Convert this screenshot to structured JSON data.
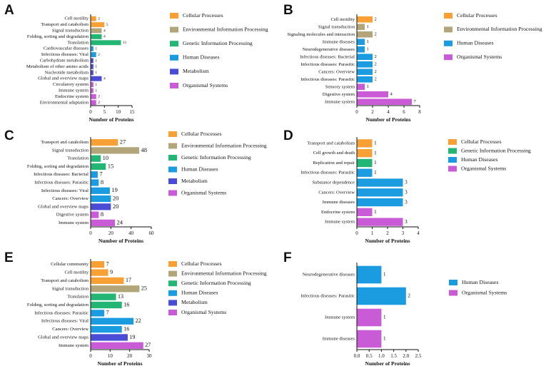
{
  "colors": {
    "Cellular Processes": "#f7a035",
    "Environmental Information Processing": "#b3a57a",
    "Genetic Information Processing": "#22b573",
    "Human Diseases": "#1b9be0",
    "Metabolism": "#4a4cd6",
    "Organismal Systems": "#c95bd6"
  },
  "chart_data": [
    {
      "type": "bar",
      "panel": "A",
      "orientation": "horizontal",
      "xlabel": "Number of Proteins",
      "xlim": [
        0,
        15
      ],
      "xticks": [
        0,
        5,
        10,
        15
      ],
      "legend": [
        "Cellular Processes",
        "Environmental Information Processing",
        "Genetic Information Processing",
        "Human Diseases",
        "Metabolism",
        "Organismal Systems"
      ],
      "bars": [
        {
          "label": "Cell motility",
          "value": 2,
          "group": "Cellular Processes"
        },
        {
          "label": "Transport and catabolism",
          "value": 5,
          "group": "Cellular Processes"
        },
        {
          "label": "Signal transduction",
          "value": 4,
          "group": "Environmental Information Processing"
        },
        {
          "label": "Folding, sorting and degradation",
          "value": 4,
          "group": "Genetic Information Processing"
        },
        {
          "label": "Translation",
          "value": 11,
          "group": "Genetic Information Processing"
        },
        {
          "label": "Cardiovascular diseases",
          "value": 1,
          "group": "Human Diseases"
        },
        {
          "label": "Infectious diseases: Viral",
          "value": 2,
          "group": "Human Diseases"
        },
        {
          "label": "Carbohydrate metabolism",
          "value": 1,
          "group": "Metabolism"
        },
        {
          "label": "Metabolism of other amino acids",
          "value": 1,
          "group": "Metabolism"
        },
        {
          "label": "Nucleotide metabolism",
          "value": 1,
          "group": "Metabolism"
        },
        {
          "label": "Global and overview maps",
          "value": 4,
          "group": "Metabolism"
        },
        {
          "label": "Circulatory system",
          "value": 1,
          "group": "Organismal Systems"
        },
        {
          "label": "Immune system",
          "value": 1,
          "group": "Organismal Systems"
        },
        {
          "label": "Endocrine system",
          "value": 2,
          "group": "Organismal Systems"
        },
        {
          "label": "Environmental adaptation",
          "value": 2,
          "group": "Organismal Systems"
        }
      ]
    },
    {
      "type": "bar",
      "panel": "B",
      "orientation": "horizontal",
      "xlabel": "Number of Proteins",
      "xlim": [
        0,
        8
      ],
      "xticks": [
        0,
        2,
        4,
        6,
        8
      ],
      "legend": [
        "Cellular Processes",
        "Environmental Information Processing",
        "Human Diseases",
        "Organismal Systems"
      ],
      "bars": [
        {
          "label": "Cell motility",
          "value": 2,
          "group": "Cellular Processes"
        },
        {
          "label": "Signal transduction",
          "value": 1,
          "group": "Environmental Information Processing"
        },
        {
          "label": "Signaling molecules and interaction",
          "value": 2,
          "group": "Environmental Information Processing"
        },
        {
          "label": "Immune diseases",
          "value": 1,
          "group": "Human Diseases"
        },
        {
          "label": "Neurodegenerative diseases",
          "value": 1,
          "group": "Human Diseases"
        },
        {
          "label": "Infectious diseases: Bacterial",
          "value": 2,
          "group": "Human Diseases"
        },
        {
          "label": "Infectious diseases: Parasitic",
          "value": 2,
          "group": "Human Diseases"
        },
        {
          "label": "Cancers: Overview",
          "value": 2,
          "group": "Human Diseases"
        },
        {
          "label": "Infectious diseases: Parasitic",
          "value": 2,
          "group": "Human Diseases"
        },
        {
          "label": "Sensory system",
          "value": 1,
          "group": "Organismal Systems"
        },
        {
          "label": "Digestive system",
          "value": 4,
          "group": "Organismal Systems"
        },
        {
          "label": "Immune system",
          "value": 7,
          "group": "Organismal Systems"
        }
      ]
    },
    {
      "type": "bar",
      "panel": "C",
      "orientation": "horizontal",
      "xlabel": "Number of Proteins",
      "xlim": [
        0,
        60
      ],
      "xticks": [
        0,
        20,
        40,
        60
      ],
      "legend": [
        "Cellular Processes",
        "Environmental Information Processing",
        "Genetic Information Processing",
        "Human Diseases",
        "Metabolism",
        "Organismal Systems"
      ],
      "bars": [
        {
          "label": "Transport and catabolism",
          "value": 27,
          "group": "Cellular Processes"
        },
        {
          "label": "Signal transduction",
          "value": 48,
          "group": "Environmental Information Processing"
        },
        {
          "label": "Translation",
          "value": 10,
          "group": "Genetic Information Processing"
        },
        {
          "label": "Folding, sorting and degradation",
          "value": 15,
          "group": "Genetic Information Processing"
        },
        {
          "label": "Infectious diseases: Bacterial",
          "value": 7,
          "group": "Human Diseases"
        },
        {
          "label": "Infectious diseases: Parasitic",
          "value": 8,
          "group": "Human Diseases"
        },
        {
          "label": "Infectious diseases: Viral",
          "value": 19,
          "group": "Human Diseases"
        },
        {
          "label": "Cancers: Overview",
          "value": 20,
          "group": "Human Diseases"
        },
        {
          "label": "Global and overview maps",
          "value": 20,
          "group": "Metabolism"
        },
        {
          "label": "Digestive system",
          "value": 8,
          "group": "Organismal Systems"
        },
        {
          "label": "Immune system",
          "value": 24,
          "group": "Organismal Systems"
        }
      ]
    },
    {
      "type": "bar",
      "panel": "D",
      "orientation": "horizontal",
      "xlabel": "Number of Proteins",
      "xlim": [
        0,
        4
      ],
      "xticks": [
        0,
        1,
        2,
        3,
        4
      ],
      "legend": [
        "Cellular Processes",
        "Genetic Information Processing",
        "Human Diseases",
        "Organismal Systems"
      ],
      "bars": [
        {
          "label": "Transport and catabolism",
          "value": 1,
          "group": "Cellular Processes"
        },
        {
          "label": "Cell growth and death",
          "value": 1,
          "group": "Cellular Processes"
        },
        {
          "label": "Replication and repair",
          "value": 1,
          "group": "Genetic Information Processing"
        },
        {
          "label": "Infectious diseases: Parasitic",
          "value": 1,
          "group": "Human Diseases"
        },
        {
          "label": "Substance dependence",
          "value": 3,
          "group": "Human Diseases"
        },
        {
          "label": "Cancers: Overview",
          "value": 3,
          "group": "Human Diseases"
        },
        {
          "label": "Immune diseases",
          "value": 3,
          "group": "Human Diseases"
        },
        {
          "label": "Endocrine system",
          "value": 1,
          "group": "Organismal Systems"
        },
        {
          "label": "Immune system",
          "value": 3,
          "group": "Organismal Systems"
        }
      ]
    },
    {
      "type": "bar",
      "panel": "E",
      "orientation": "horizontal",
      "xlabel": "Number of Proteins",
      "xlim": [
        0,
        30
      ],
      "xticks": [
        0,
        10,
        20,
        30
      ],
      "legend": [
        "Cellular Processes",
        "Environmental Information Processing",
        "Genetic Information Processing",
        "Human Diseases",
        "Metabolism",
        "Organismal Systems"
      ],
      "bars": [
        {
          "label": "Cellular community",
          "value": 7,
          "group": "Cellular Processes"
        },
        {
          "label": "Cell motility",
          "value": 9,
          "group": "Cellular Processes"
        },
        {
          "label": "Transport and catabolism",
          "value": 17,
          "group": "Cellular Processes"
        },
        {
          "label": "Signal transduction",
          "value": 25,
          "group": "Environmental Information Processing"
        },
        {
          "label": "Translation",
          "value": 13,
          "group": "Genetic Information Processing"
        },
        {
          "label": "Folding, sorting and degradation",
          "value": 16,
          "group": "Genetic Information Processing"
        },
        {
          "label": "Infectious diseases: Parasitic",
          "value": 7,
          "group": "Human Diseases"
        },
        {
          "label": "Infectious diseases: Viral",
          "value": 22,
          "group": "Human Diseases"
        },
        {
          "label": "Cancers: Overview",
          "value": 16,
          "group": "Human Diseases"
        },
        {
          "label": "Global and overview maps",
          "value": 19,
          "group": "Metabolism"
        },
        {
          "label": "Immune system",
          "value": 27,
          "group": "Organismal Systems"
        }
      ]
    },
    {
      "type": "bar",
      "panel": "F",
      "orientation": "horizontal",
      "xlabel": "Number of Proteins",
      "xlim": [
        0,
        2.5
      ],
      "xticks": [
        "0.0",
        "0.5",
        "1.0",
        "1.5",
        "2.0",
        "2.5"
      ],
      "legend": [
        "Human Diseases",
        "Organismal Systems"
      ],
      "bars": [
        {
          "label": "Neurodegenerative diseases",
          "value": 1,
          "group": "Human Diseases"
        },
        {
          "label": "Infectious diseases: Parasitic",
          "value": 2,
          "group": "Human Diseases"
        },
        {
          "label": "Immune system",
          "value": 1,
          "group": "Organismal Systems"
        },
        {
          "label": "Immune diseases",
          "value": 1,
          "group": "Organismal Systems"
        }
      ]
    }
  ]
}
